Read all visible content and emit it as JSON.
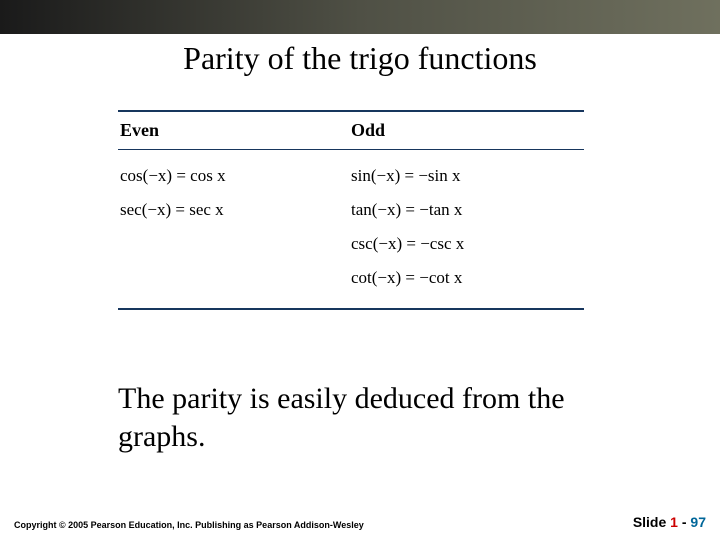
{
  "slide": {
    "title": "Parity of the trigo functions",
    "body_text": "The parity is easily deduced from the graphs."
  },
  "table": {
    "headers": {
      "even": "Even",
      "odd": "Odd"
    },
    "even_rows": [
      "cos(−x)  =  cos x",
      "sec(−x)  =  sec x"
    ],
    "odd_rows": [
      "sin(−x)  =  −sin x",
      "tan(−x)  =  −tan x",
      "csc(−x)  =  −csc x",
      "cot(−x)  =  −cot x"
    ],
    "rule_color": "#17365d"
  },
  "footer": {
    "copyright": "Copyright © 2005 Pearson Education, Inc.  Publishing as Pearson Addison-Wesley",
    "page": {
      "label": "Slide",
      "num": "1",
      "sep": "-",
      "total": "97"
    }
  },
  "colors": {
    "topbar_gradient_from": "#1a1a1a",
    "topbar_gradient_mid": "#4f5045",
    "topbar_gradient_to": "#6f705e",
    "page_num_color": "#cc0000",
    "page_total_color": "#006699"
  }
}
